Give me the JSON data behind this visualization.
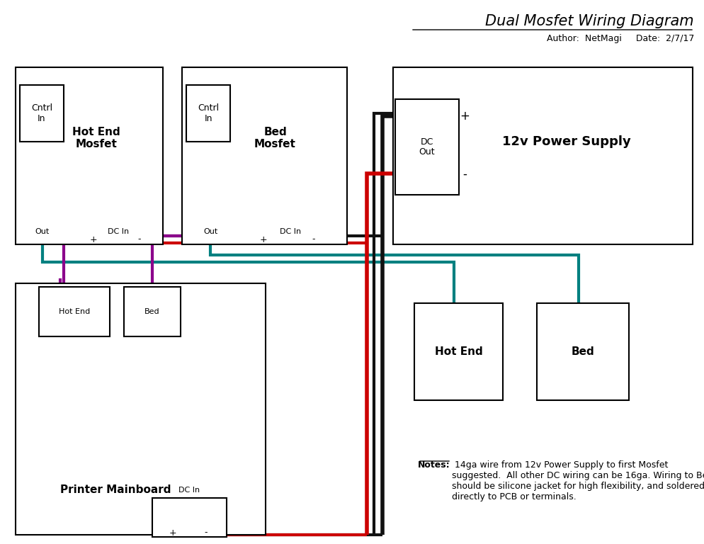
{
  "title": "Dual Mosfet Wiring Diagram",
  "author_label": "Author: ",
  "author_name": "NetMagi",
  "date_label": "Date: ",
  "date_value": "2/7/17",
  "bg_color": "#ffffff",
  "wire_red": "#cc0000",
  "wire_black": "#111111",
  "wire_purple": "#8B008B",
  "wire_teal": "#008080",
  "notes_title": "Notes:",
  "notes_body": " 14ga wire from 12v Power Supply to first Mosfet\nsuggested.  All other DC wiring can be 16ga. Wiring to Bed\nshould be silicone jacket for high flexibility, and soldered\ndirectly to PCB or terminals."
}
